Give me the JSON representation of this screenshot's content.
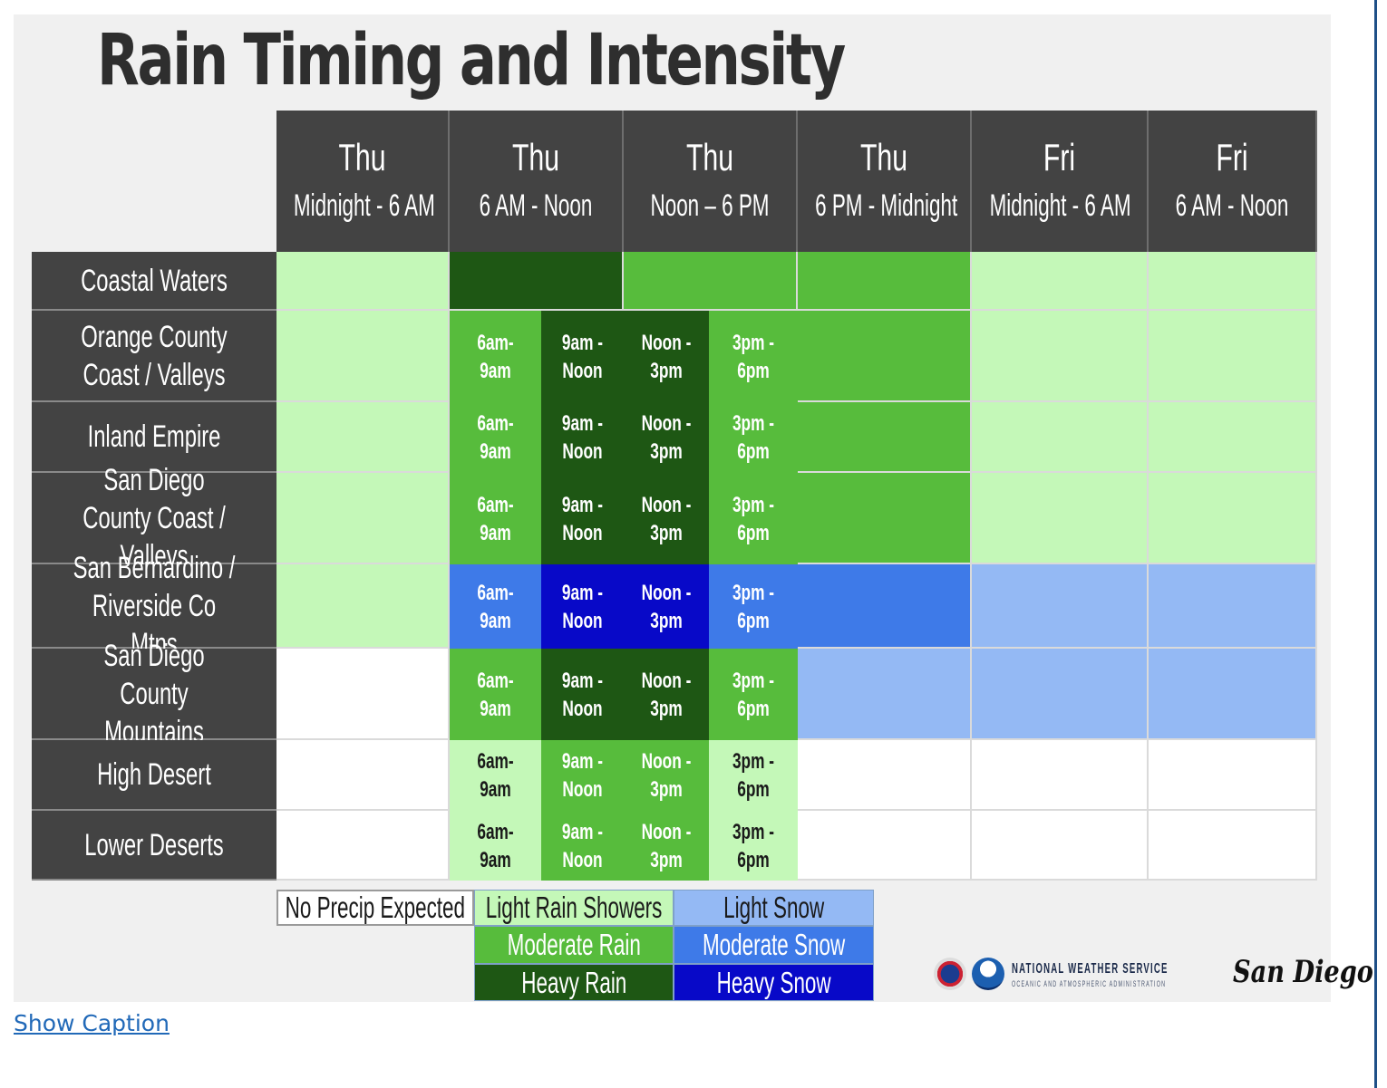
{
  "title": "Rain Timing and Intensity",
  "colors": {
    "none": "#ffffff",
    "light_rain": "#c4f8b8",
    "moderate_rain": "#57bc3c",
    "heavy_rain": "#1e5714",
    "light_snow": "#94b9f4",
    "moderate_snow": "#3e7ae8",
    "heavy_snow": "#0809c8"
  },
  "columns": [
    {
      "day": "Thu",
      "range": "Midnight - 6 AM"
    },
    {
      "day": "Thu",
      "range": "6 AM - Noon"
    },
    {
      "day": "Thu",
      "range": "Noon – 6 PM"
    },
    {
      "day": "Thu",
      "range": "6 PM - Midnight"
    },
    {
      "day": "Fri",
      "range": "Midnight - 6 AM"
    },
    {
      "day": "Fri",
      "range": "6 AM - Noon"
    }
  ],
  "rows": [
    {
      "label": "Coastal Waters",
      "blocks": [
        "light_rain",
        "heavy_rain",
        "moderate_rain",
        "moderate_rain",
        "light_rain",
        "light_rain"
      ],
      "subs": null
    },
    {
      "label": "Orange County Coast / Valleys",
      "blocks": [
        "light_rain",
        null,
        null,
        "moderate_rain",
        "light_rain",
        "light_rain"
      ],
      "subs": [
        {
          "text": "6am-9am",
          "level": "moderate_rain"
        },
        {
          "text": "9am - Noon",
          "level": "heavy_rain"
        },
        {
          "text": "Noon - 3pm",
          "level": "heavy_rain"
        },
        {
          "text": "3pm - 6pm",
          "level": "moderate_rain"
        }
      ]
    },
    {
      "label": "Inland Empire",
      "blocks": [
        "light_rain",
        null,
        null,
        "moderate_rain",
        "light_rain",
        "light_rain"
      ],
      "subs": [
        {
          "text": "6am-9am",
          "level": "moderate_rain"
        },
        {
          "text": "9am - Noon",
          "level": "heavy_rain"
        },
        {
          "text": "Noon - 3pm",
          "level": "heavy_rain"
        },
        {
          "text": "3pm - 6pm",
          "level": "moderate_rain"
        }
      ]
    },
    {
      "label": "San Diego County Coast / Valleys",
      "blocks": [
        "light_rain",
        null,
        null,
        "moderate_rain",
        "light_rain",
        "light_rain"
      ],
      "subs": [
        {
          "text": "6am-9am",
          "level": "moderate_rain"
        },
        {
          "text": "9am - Noon",
          "level": "heavy_rain"
        },
        {
          "text": "Noon - 3pm",
          "level": "heavy_rain"
        },
        {
          "text": "3pm - 6pm",
          "level": "moderate_rain"
        }
      ]
    },
    {
      "label": "San Bernardino / Riverside Co Mtns",
      "blocks": [
        "light_rain",
        null,
        null,
        "moderate_snow",
        "light_snow",
        "light_snow"
      ],
      "subs": [
        {
          "text": "6am-9am",
          "level": "moderate_snow"
        },
        {
          "text": "9am - Noon",
          "level": "heavy_snow"
        },
        {
          "text": "Noon - 3pm",
          "level": "heavy_snow"
        },
        {
          "text": "3pm - 6pm",
          "level": "moderate_snow"
        }
      ]
    },
    {
      "label": "San Diego County Mountains",
      "blocks": [
        "none",
        null,
        null,
        "light_snow",
        "light_snow",
        "light_snow"
      ],
      "subs": [
        {
          "text": "6am-9am",
          "level": "moderate_rain"
        },
        {
          "text": "9am - Noon",
          "level": "heavy_rain"
        },
        {
          "text": "Noon - 3pm",
          "level": "heavy_rain"
        },
        {
          "text": "3pm - 6pm",
          "level": "moderate_rain"
        }
      ]
    },
    {
      "label": "High Desert",
      "blocks": [
        "none",
        null,
        null,
        "none",
        "none",
        "none"
      ],
      "subs": [
        {
          "text": "6am-9am",
          "level": "light_rain"
        },
        {
          "text": "9am - Noon",
          "level": "moderate_rain"
        },
        {
          "text": "Noon - 3pm",
          "level": "moderate_rain"
        },
        {
          "text": "3pm - 6pm",
          "level": "light_rain"
        }
      ]
    },
    {
      "label": "Lower Deserts",
      "blocks": [
        "none",
        null,
        null,
        "none",
        "none",
        "none"
      ],
      "subs": [
        {
          "text": "6am-9am",
          "level": "light_rain"
        },
        {
          "text": "9am - Noon",
          "level": "moderate_rain"
        },
        {
          "text": "Noon - 3pm",
          "level": "moderate_rain"
        },
        {
          "text": "3pm - 6pm",
          "level": "light_rain"
        }
      ]
    }
  ],
  "legend": {
    "none": "No Precip Expected",
    "light_rain": "Light Rain Showers",
    "moderate_rain": "Moderate Rain",
    "heavy_rain": "Heavy Rain",
    "light_snow": "Light Snow",
    "moderate_snow": "Moderate Snow",
    "heavy_snow": "Heavy Snow"
  },
  "logo": {
    "agency": "NATIONAL WEATHER SERVICE",
    "sub": "OCEANIC AND ATMOSPHERIC ADMINISTRATION",
    "office": "San Diego"
  },
  "caption_link": "Show Caption"
}
